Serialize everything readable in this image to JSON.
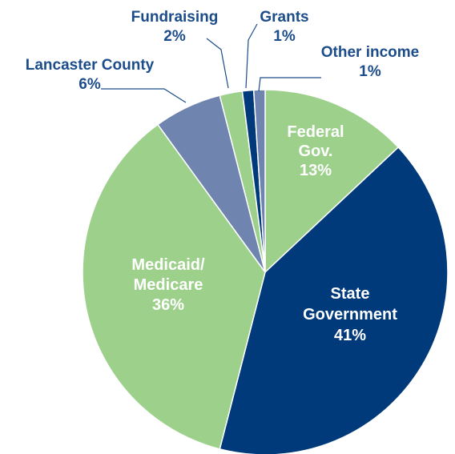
{
  "chart_data": {
    "type": "pie",
    "start_angle_deg": 0,
    "direction": "clockwise",
    "slices": [
      {
        "label": [
          "Federal",
          "Gov."
        ],
        "value_text": "13%",
        "value": 13,
        "color": "#9dd18b",
        "label_color": "#ffffff",
        "label_placement": "inside"
      },
      {
        "label": [
          "State",
          "Government"
        ],
        "value_text": "41%",
        "value": 41,
        "color": "#003a7a",
        "label_color": "#ffffff",
        "label_placement": "inside"
      },
      {
        "label": [
          "Medicaid/",
          "Medicare"
        ],
        "value_text": "36%",
        "value": 36,
        "color": "#9dd18b",
        "label_color": "#ffffff",
        "label_placement": "inside"
      },
      {
        "label": [
          "Lancaster County"
        ],
        "value_text": "6%",
        "value": 6,
        "color": "#7084b0",
        "label_color": "#1c4d8a",
        "label_placement": "outside"
      },
      {
        "label": [
          "Fundraising"
        ],
        "value_text": "2%",
        "value": 2,
        "color": "#9dd18b",
        "label_color": "#1c4d8a",
        "label_placement": "outside"
      },
      {
        "label": [
          "Grants"
        ],
        "value_text": "1%",
        "value": 1,
        "color": "#003a7a",
        "label_color": "#1c4d8a",
        "label_placement": "outside"
      },
      {
        "label": [
          "Other income"
        ],
        "value_text": "1%",
        "value": 1,
        "color": "#7084b0",
        "label_color": "#1c4d8a",
        "label_placement": "outside"
      }
    ]
  }
}
